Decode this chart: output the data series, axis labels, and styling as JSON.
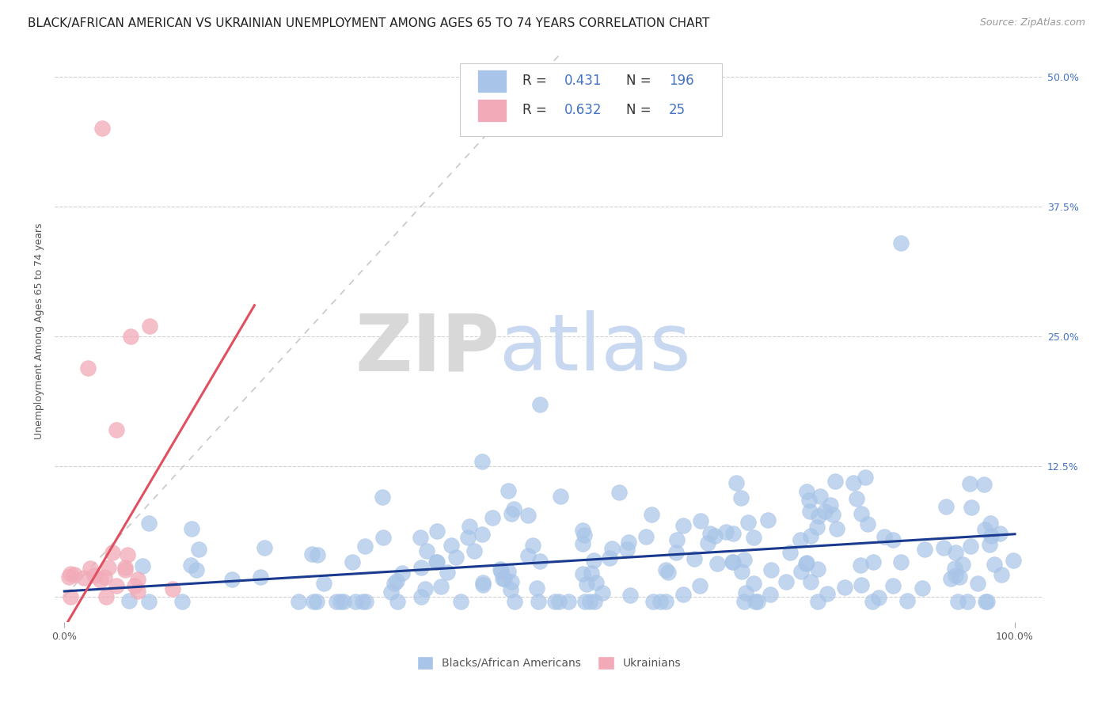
{
  "title": "BLACK/AFRICAN AMERICAN VS UKRAINIAN UNEMPLOYMENT AMONG AGES 65 TO 74 YEARS CORRELATION CHART",
  "source": "Source: ZipAtlas.com",
  "ylabel_label": "Unemployment Among Ages 65 to 74 years",
  "legend_labels": [
    "Blacks/African Americans",
    "Ukrainians"
  ],
  "blue_R": "0.431",
  "blue_N": "196",
  "pink_R": "0.632",
  "pink_N": "25",
  "blue_color": "#a8c4e8",
  "pink_color": "#f2aab8",
  "blue_line_color": "#1a3a8f",
  "pink_line_color": "#e05060",
  "diagonal_color": "#c8c8c8",
  "background_color": "#ffffff",
  "zip_watermark_color": "#d8d8d8",
  "atlas_watermark_color": "#c8d8f0",
  "title_fontsize": 11,
  "source_fontsize": 9,
  "axis_label_fontsize": 9,
  "tick_fontsize": 9,
  "legend_fontsize": 12,
  "ytick_color": "#4472c4",
  "xtick_color": "#555555"
}
